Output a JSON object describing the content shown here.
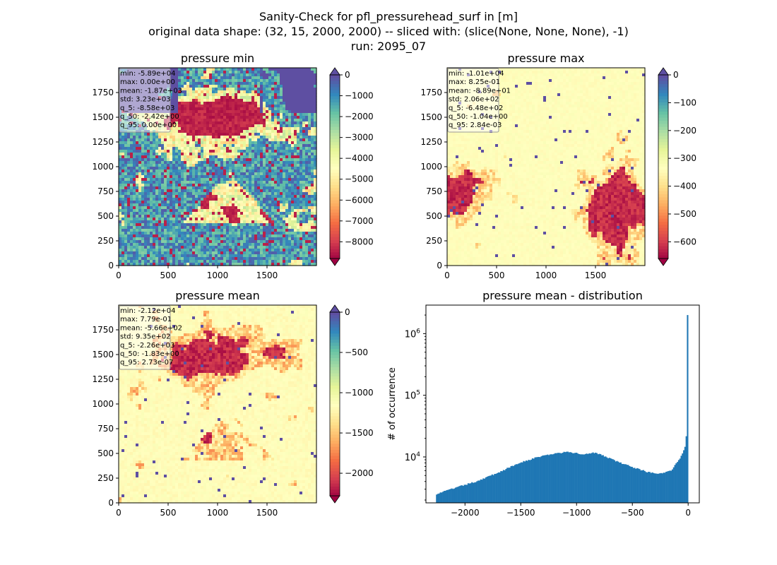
{
  "figure": {
    "title_lines": [
      "Sanity-Check for pfl_pressurehead_surf in [m]",
      "original data shape: (32, 15, 2000, 2000) -- sliced with: (slice(None, None, None), -1)",
      "run: 2095_07"
    ]
  },
  "chart_data": [
    {
      "type": "heatmap",
      "title": "pressure min",
      "xlim": [
        0,
        2000
      ],
      "ylim": [
        0,
        2000
      ],
      "xticks": [
        0,
        500,
        1000,
        1500
      ],
      "yticks": [
        0,
        250,
        500,
        750,
        1000,
        1250,
        1500,
        1750
      ],
      "colormap": "Spectral",
      "colorbar": {
        "range": [
          -8800,
          0
        ],
        "ticks": [
          0,
          -1000,
          -2000,
          -3000,
          -4000,
          -5000,
          -6000,
          -7000,
          -8000
        ],
        "extend": "both"
      },
      "stats": [
        "min: -5.89e+04",
        "max: 0.00e+00",
        "mean: -1.87e+03",
        "std: 3.23e+03",
        "q_5: -8.58e+03",
        "q_50: -2.42e+00",
        "q_95: 0.00e+00"
      ]
    },
    {
      "type": "heatmap",
      "title": "pressure max",
      "xlim": [
        0,
        2000
      ],
      "ylim": [
        0,
        2000
      ],
      "xticks": [
        0,
        500,
        1000,
        1500
      ],
      "yticks": [
        0,
        250,
        500,
        750,
        1000,
        1250,
        1500,
        1750
      ],
      "colormap": "Spectral",
      "colorbar": {
        "range": [
          -660,
          0
        ],
        "ticks": [
          0,
          -100,
          -200,
          -300,
          -400,
          -500,
          -600
        ],
        "extend": "both"
      },
      "stats": [
        "min: -1.01e+04",
        "max: 8.25e-01",
        "mean: -8.89e+01",
        "std: 2.06e+02",
        "q_5: -6.48e+02",
        "q_50: -1.04e+00",
        "q_95: 2.84e-03"
      ]
    },
    {
      "type": "heatmap",
      "title": "pressure mean",
      "xlim": [
        0,
        2000
      ],
      "ylim": [
        0,
        2000
      ],
      "xticks": [
        0,
        500,
        1000,
        1500
      ],
      "yticks": [
        0,
        250,
        500,
        750,
        1000,
        1250,
        1500,
        1750
      ],
      "colormap": "Spectral",
      "colorbar": {
        "range": [
          -2280,
          0
        ],
        "ticks": [
          0,
          -500,
          -1000,
          -1500,
          -2000
        ],
        "extend": "both"
      },
      "stats": [
        "min: -2.12e+04",
        "max: 7.79e-01",
        "mean: -5.66e+02",
        "std: 9.35e+02",
        "q_5: -2.26e+03",
        "q_50: -1.83e+00",
        "q_95: 2.73e-07"
      ]
    },
    {
      "type": "bar",
      "title": "pressure mean - distribution",
      "ylabel": "# of occurrence",
      "xlim": [
        -2350,
        100
      ],
      "ylim": [
        1800,
        2900000
      ],
      "yscale": "log",
      "xticks": [
        -2000,
        -1500,
        -1000,
        -500,
        0
      ],
      "yticks": [
        "10^4",
        "10^5",
        "10^6"
      ],
      "color": "#1f77b4",
      "hist_x_range": [
        -2260,
        0
      ],
      "hist_profile": [
        [
          -2260,
          2500
        ],
        [
          -2100,
          3100
        ],
        [
          -1900,
          4000
        ],
        [
          -1700,
          5600
        ],
        [
          -1500,
          8200
        ],
        [
          -1300,
          10500
        ],
        [
          -1100,
          12000
        ],
        [
          -1000,
          11500
        ],
        [
          -950,
          10900
        ],
        [
          -850,
          11900
        ],
        [
          -750,
          10300
        ],
        [
          -600,
          7900
        ],
        [
          -450,
          6400
        ],
        [
          -350,
          5600
        ],
        [
          -250,
          5400
        ],
        [
          -150,
          6100
        ],
        [
          -80,
          9000
        ],
        [
          -30,
          14000
        ],
        [
          -10,
          28000
        ],
        [
          0,
          2000000
        ]
      ]
    }
  ]
}
